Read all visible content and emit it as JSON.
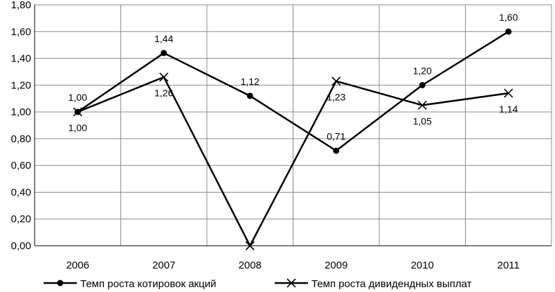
{
  "chart_data": {
    "type": "line",
    "title": "",
    "xlabel": "",
    "ylabel": "",
    "categories": [
      "2006",
      "2007",
      "2008",
      "2009",
      "2010",
      "2011"
    ],
    "ylim": [
      0,
      1.8
    ],
    "yticks": [
      0,
      0.2,
      0.4,
      0.6,
      0.8,
      1.0,
      1.2,
      1.4,
      1.6,
      1.8
    ],
    "ytick_labels": [
      "0,00",
      "0,20",
      "0,40",
      "0,60",
      "0,80",
      "1,00",
      "1,20",
      "1,40",
      "1,60",
      "1,80"
    ],
    "grid": "on",
    "legend_position": "bottom",
    "series": [
      {
        "name": "Темп роста котировок акций",
        "marker": "circle",
        "color": "#000000",
        "values": [
          1.0,
          1.44,
          1.12,
          0.71,
          1.2,
          1.6
        ],
        "labels": [
          "1,00",
          "1,44",
          "1,12",
          "0,71",
          "1,20",
          "1,60"
        ],
        "label_position": "above"
      },
      {
        "name": "Темп роста дивидендных выплат",
        "marker": "x",
        "color": "#000000",
        "values": [
          1.0,
          1.26,
          0.0,
          1.23,
          1.05,
          1.14
        ],
        "labels": [
          "1,00",
          "1,26",
          "",
          "1,23",
          "1,05",
          "1,14"
        ],
        "label_position": "below"
      }
    ]
  }
}
